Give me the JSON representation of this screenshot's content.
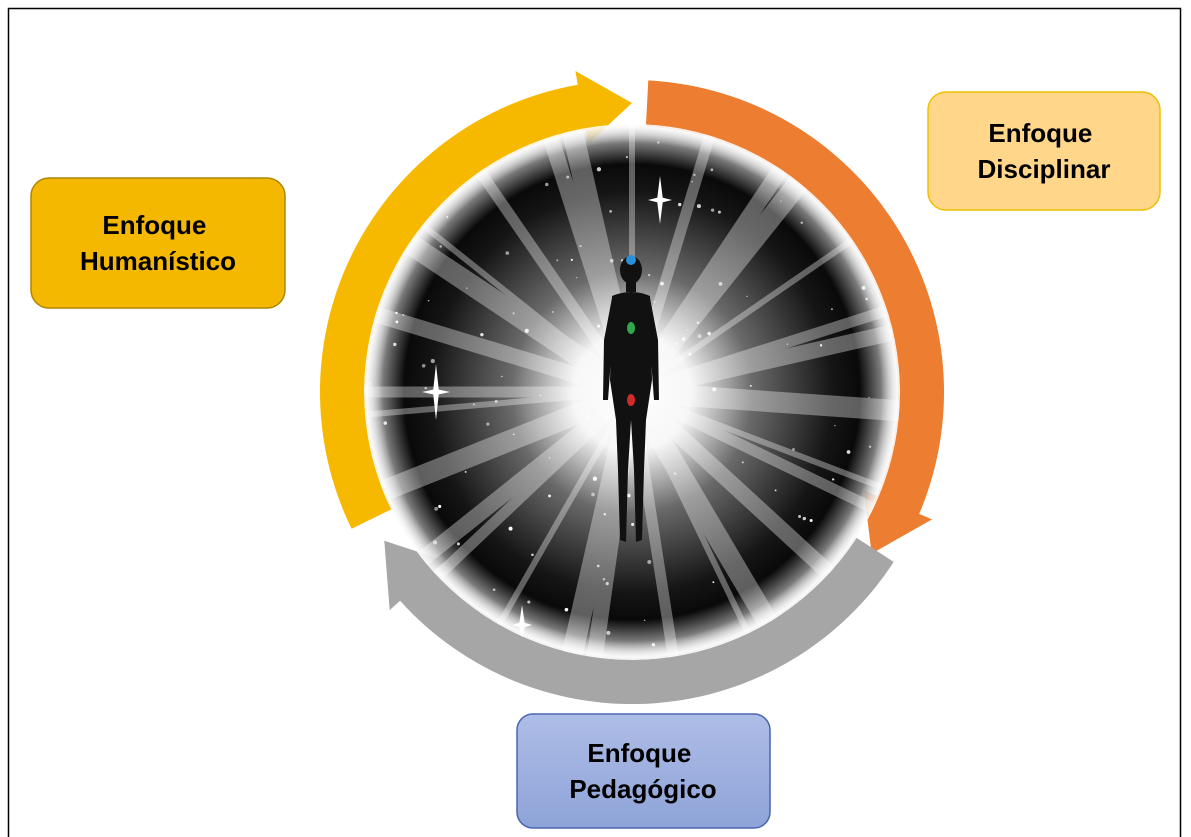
{
  "nodes": [
    {
      "label": [
        "Enfoque",
        "Humanístico"
      ]
    },
    {
      "label": [
        "Enfoque",
        "Disciplinar"
      ]
    },
    {
      "label": [
        "Enfoque",
        "Pedagógico"
      ]
    }
  ]
}
